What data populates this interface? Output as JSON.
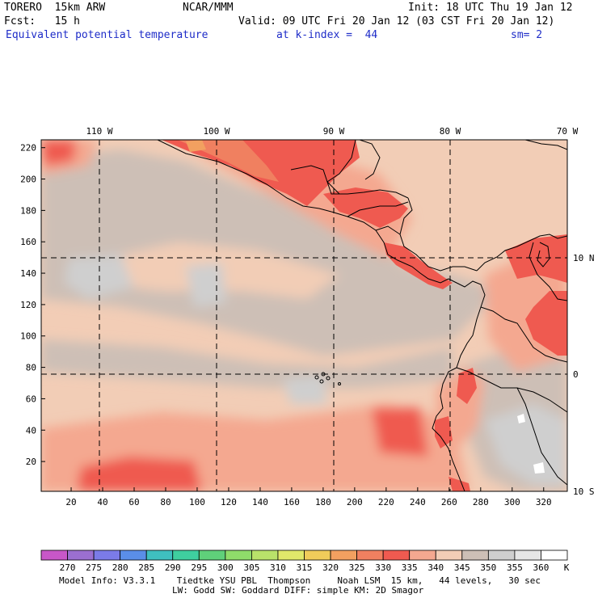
{
  "header": {
    "model": "TORERO  15km ARW",
    "org": "NCAR/MMM",
    "init": "Init: 18 UTC Thu 19 Jan 12",
    "fcst": "Fcst:   15 h",
    "valid": "Valid: 09 UTC Fri 20 Jan 12 (03 CST Fri 20 Jan 12)",
    "field": "Equivalent potential temperature",
    "level": "at k-index =  44",
    "smooth": "sm= 2"
  },
  "map": {
    "lon_labels": [
      "110 W",
      "100 W",
      "90 W",
      "80 W",
      "70 W"
    ],
    "lat_labels": [
      "10 N",
      "0",
      "10 S"
    ],
    "x_ticks": [
      "20",
      "40",
      "60",
      "80",
      "100",
      "120",
      "140",
      "160",
      "180",
      "200",
      "220",
      "240",
      "260",
      "280",
      "300",
      "320"
    ],
    "y_ticks": [
      "20",
      "40",
      "60",
      "80",
      "100",
      "120",
      "140",
      "160",
      "180",
      "200",
      "220"
    ],
    "grid_x": [
      1,
      335
    ],
    "grid_y": [
      1,
      225
    ]
  },
  "colorbar": {
    "unit": "K",
    "labels": [
      "270",
      "275",
      "280",
      "285",
      "290",
      "295",
      "300",
      "305",
      "310",
      "315",
      "320",
      "325",
      "330",
      "335",
      "340",
      "345",
      "350",
      "355",
      "360"
    ],
    "colors": [
      "#c857c8",
      "#9b6fd0",
      "#7b7be8",
      "#5a8ee8",
      "#3fbfbf",
      "#3fcf9f",
      "#5fd07a",
      "#8fdc6a",
      "#b9e26a",
      "#e0e86a",
      "#f0cc5a",
      "#f2a060",
      "#f08060",
      "#ef5a50",
      "#f4a890",
      "#f2cdb6",
      "#cdbfb6",
      "#cfcfcf",
      "#e6e6e6",
      "#ffffff"
    ]
  },
  "footer": {
    "line1": "Model Info: V3.3.1    Tiedtke YSU PBL  Thompson     Noah LSM  15 km,   44 levels,   30 sec",
    "line2": "LW: Godd SW: Goddard DIFF: simple KM: 2D Smagor"
  }
}
